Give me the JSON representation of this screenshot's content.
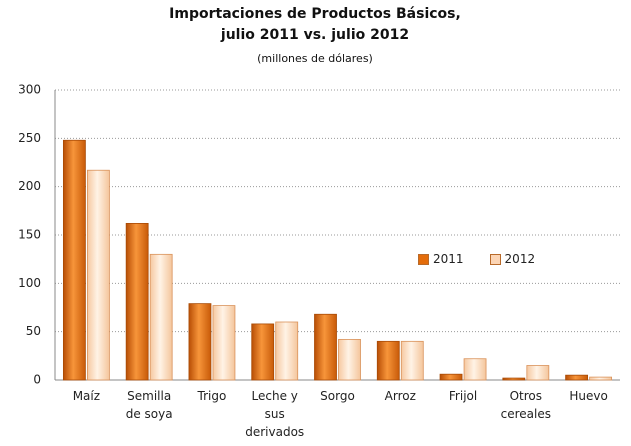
{
  "chart_data": {
    "type": "bar",
    "title": "Importaciones de Productos Básicos, julio 2011 vs. julio 2012",
    "subtitle": "(millones de dólares)",
    "categories": [
      "Maíz",
      "Semilla de soya",
      "Trigo",
      "Leche y sus derivados",
      "Sorgo",
      "Arroz",
      "Frijol",
      "Otros cereales",
      "Huevo"
    ],
    "series": [
      {
        "name": "2011",
        "color": "#e46c0a",
        "values": [
          248,
          162,
          79,
          58,
          68,
          40,
          6,
          2,
          5
        ]
      },
      {
        "name": "2012",
        "color": "#fcd5b5",
        "values": [
          217,
          130,
          77,
          60,
          42,
          40,
          22,
          15,
          3
        ]
      }
    ],
    "ylim": [
      0,
      300
    ],
    "yticks": [
      0,
      50,
      100,
      150,
      200,
      250,
      300
    ],
    "grid": true
  }
}
